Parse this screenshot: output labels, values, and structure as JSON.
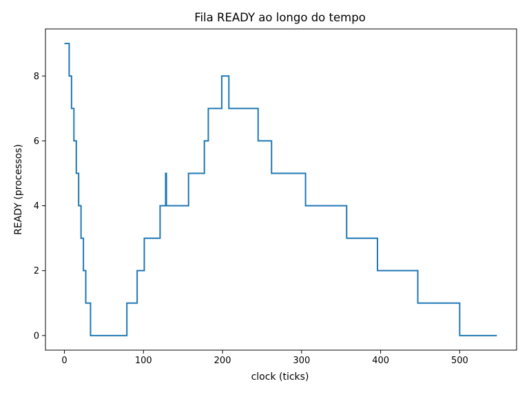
{
  "chart_data": {
    "type": "line",
    "title": "Fila READY ao longo do tempo",
    "xlabel": "clock (ticks)",
    "ylabel": "READY (processos)",
    "xlim": [
      -24,
      572
    ],
    "ylim": [
      -0.45,
      9.45
    ],
    "xticks": [
      0,
      100,
      200,
      300,
      400,
      500
    ],
    "yticks": [
      0,
      2,
      4,
      6,
      8
    ],
    "grid": false,
    "line_color": "#1f77b4",
    "step": "post",
    "series": [
      {
        "x": [
          0,
          3,
          6,
          9,
          12,
          15,
          18,
          21,
          24,
          27,
          30,
          33,
          79,
          92,
          101,
          121,
          127,
          128,
          129,
          157,
          177,
          182,
          199,
          208,
          245,
          262,
          305,
          357,
          396,
          447,
          500,
          547
        ],
        "y": [
          9,
          9,
          8,
          7,
          6,
          5,
          4,
          3,
          2,
          1,
          1,
          0,
          1,
          2,
          3,
          4,
          4,
          5,
          4,
          5,
          6,
          7,
          8,
          7,
          6,
          5,
          4,
          3,
          2,
          1,
          0,
          0
        ]
      }
    ]
  }
}
